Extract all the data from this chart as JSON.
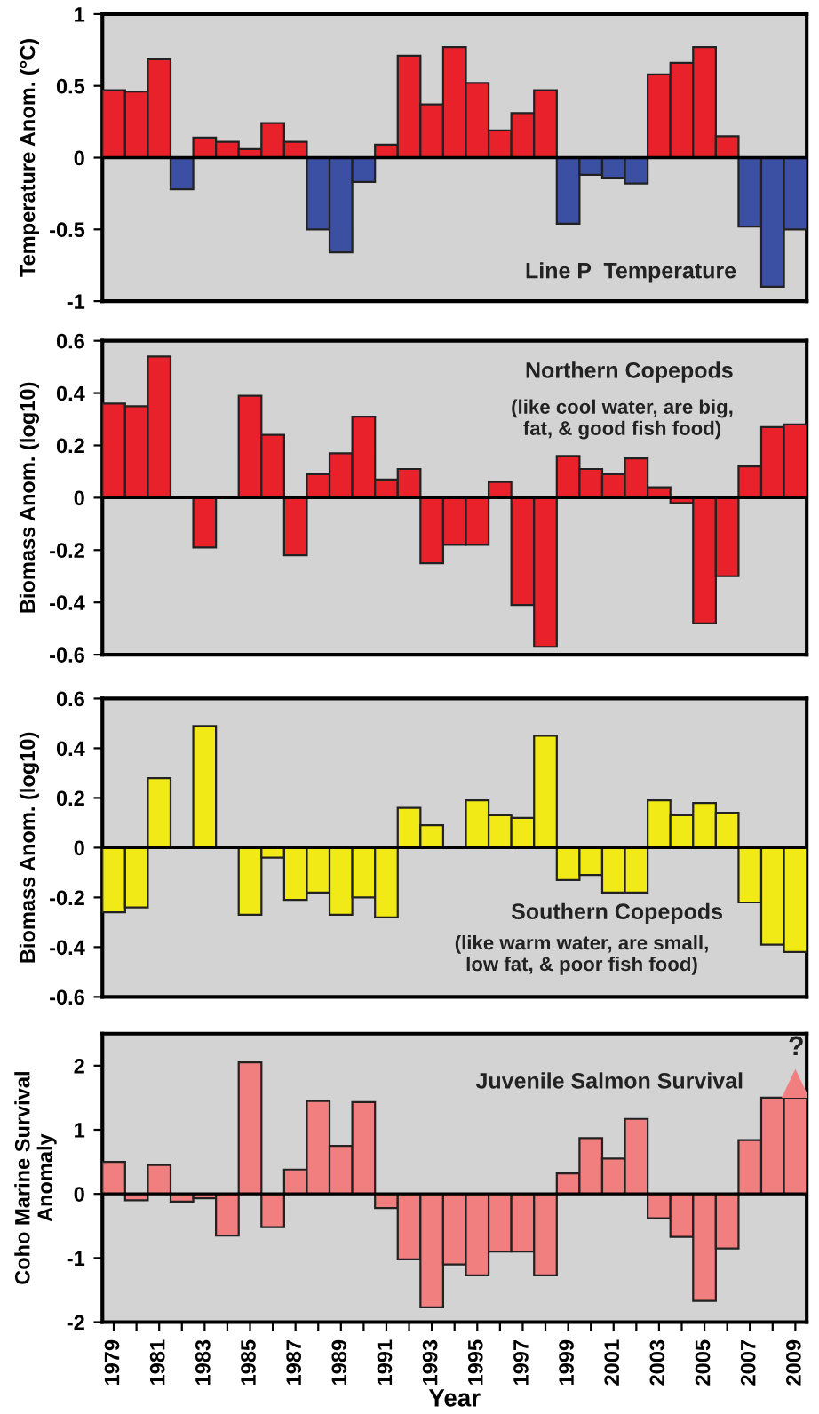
{
  "chart_data": [
    {
      "type": "bar",
      "ylabel": "Temperature Anom. (°C)",
      "categories": [
        "1979",
        null,
        "1981",
        null,
        "1983",
        null,
        "1985",
        null,
        "1987",
        null,
        "1989",
        null,
        "1991",
        null,
        "1993",
        null,
        "1995",
        null,
        "1997",
        null,
        "1999",
        null,
        "2001",
        null,
        "2003",
        null,
        "2005",
        null,
        "2007",
        null,
        "2009"
      ],
      "values": [
        0.47,
        0.46,
        0.69,
        -0.22,
        0.14,
        0.11,
        0.06,
        0.24,
        0.11,
        -0.5,
        -0.66,
        -0.17,
        0.09,
        0.71,
        0.37,
        0.77,
        0.52,
        0.19,
        0.31,
        0.47,
        -0.46,
        -0.12,
        -0.14,
        -0.18,
        0.58,
        0.66,
        0.77,
        0.15,
        -0.48,
        -0.9,
        -0.5
      ],
      "colors": [
        "#e8212a",
        "#e8212a",
        "#e8212a",
        "#3b4fa3",
        "#e8212a",
        "#e8212a",
        "#e8212a",
        "#e8212a",
        "#e8212a",
        "#3b4fa3",
        "#3b4fa3",
        "#3b4fa3",
        "#e8212a",
        "#e8212a",
        "#e8212a",
        "#e8212a",
        "#e8212a",
        "#e8212a",
        "#e8212a",
        "#e8212a",
        "#3b4fa3",
        "#3b4fa3",
        "#3b4fa3",
        "#3b4fa3",
        "#e8212a",
        "#e8212a",
        "#e8212a",
        "#e8212a",
        "#3b4fa3",
        "#3b4fa3",
        "#3b4fa3"
      ],
      "ref_lines": [
        {
          "axis": "y",
          "value": 0
        }
      ],
      "ylim": [
        -1,
        1
      ],
      "yticks": [
        -1,
        -0.5,
        0,
        0.5,
        1
      ],
      "tick_labels": "y",
      "grid": false,
      "legend": false,
      "annotations": [
        "Line P  Temperature"
      ]
    },
    {
      "type": "bar",
      "ylabel": "Biomass Anom. (log10)",
      "categories": [
        "1979",
        null,
        "1981",
        null,
        "1983",
        null,
        "1985",
        null,
        "1987",
        null,
        "1989",
        null,
        "1991",
        null,
        "1993",
        null,
        "1995",
        null,
        "1997",
        null,
        "1999",
        null,
        "2001",
        null,
        "2003",
        null,
        "2005",
        null,
        "2007",
        null,
        "2009"
      ],
      "values": [
        0.36,
        0.35,
        0.54,
        null,
        -0.19,
        null,
        0.39,
        0.24,
        -0.22,
        0.09,
        0.17,
        0.31,
        0.07,
        0.11,
        -0.25,
        -0.18,
        -0.18,
        0.06,
        -0.41,
        -0.57,
        0.16,
        0.11,
        0.09,
        0.15,
        0.04,
        -0.02,
        -0.48,
        -0.3,
        0.12,
        0.27,
        0.28
      ],
      "color": "#e8212a",
      "ref_lines": [
        {
          "axis": "y",
          "value": 0
        }
      ],
      "ylim": [
        -0.6,
        0.6
      ],
      "yticks": [
        -0.6,
        -0.4,
        -0.2,
        0,
        0.2,
        0.4,
        0.6
      ],
      "tick_labels": "y",
      "grid": false,
      "legend": false,
      "annotations": [
        "Northern Copepods",
        "(like cool water, are big,\nfat, & good fish food)"
      ]
    },
    {
      "type": "bar",
      "ylabel": "Biomass Anom. (log10)",
      "categories": [
        "1979",
        null,
        "1981",
        null,
        "1983",
        null,
        "1985",
        null,
        "1987",
        null,
        "1989",
        null,
        "1991",
        null,
        "1993",
        null,
        "1995",
        null,
        "1997",
        null,
        "1999",
        null,
        "2001",
        null,
        "2003",
        null,
        "2005",
        null,
        "2007",
        null,
        "2009"
      ],
      "values": [
        -0.26,
        -0.24,
        0.28,
        null,
        0.49,
        null,
        -0.27,
        -0.04,
        -0.21,
        -0.18,
        -0.27,
        -0.2,
        -0.28,
        0.16,
        0.09,
        null,
        0.19,
        0.13,
        0.12,
        0.45,
        -0.13,
        -0.11,
        -0.18,
        -0.18,
        0.19,
        0.13,
        0.18,
        0.14,
        -0.22,
        -0.39,
        -0.42
      ],
      "color": "#f2ea16",
      "ref_lines": [
        {
          "axis": "y",
          "value": 0
        }
      ],
      "ylim": [
        -0.6,
        0.6
      ],
      "yticks": [
        -0.6,
        -0.4,
        -0.2,
        0,
        0.2,
        0.4,
        0.6
      ],
      "tick_labels": "y",
      "grid": false,
      "legend": false,
      "annotations": [
        "Southern Copepods",
        "(like warm water, are small,\nlow fat, & poor fish food)"
      ]
    },
    {
      "type": "bar",
      "ylabel": "Coho Marine Survival\nAnomaly",
      "xlabel": "Year",
      "categories": [
        "1979",
        null,
        "1981",
        null,
        "1983",
        null,
        "1985",
        null,
        "1987",
        null,
        "1989",
        null,
        "1991",
        null,
        "1993",
        null,
        "1995",
        null,
        "1997",
        null,
        "1999",
        null,
        "2001",
        null,
        "2003",
        null,
        "2005",
        null,
        "2007",
        null,
        "2009"
      ],
      "values": [
        0.5,
        -0.1,
        0.45,
        -0.12,
        -0.07,
        -0.65,
        2.05,
        -0.52,
        0.38,
        1.45,
        0.75,
        1.43,
        -0.22,
        -1.02,
        -1.77,
        -1.1,
        -1.27,
        -0.9,
        -0.9,
        -1.27,
        0.32,
        0.87,
        0.55,
        1.17,
        -0.38,
        -0.67,
        -1.67,
        -0.85,
        0.84,
        1.5,
        1.5
      ],
      "color": "#f27f7f",
      "ref_lines": [
        {
          "axis": "y",
          "value": 0
        }
      ],
      "ylim": [
        -2,
        2.5
      ],
      "yticks": [
        -2,
        -1,
        0,
        1,
        2
      ],
      "grid": false,
      "legend": false,
      "annotations": [
        "Juvenile Salmon Survival",
        "?"
      ]
    }
  ]
}
